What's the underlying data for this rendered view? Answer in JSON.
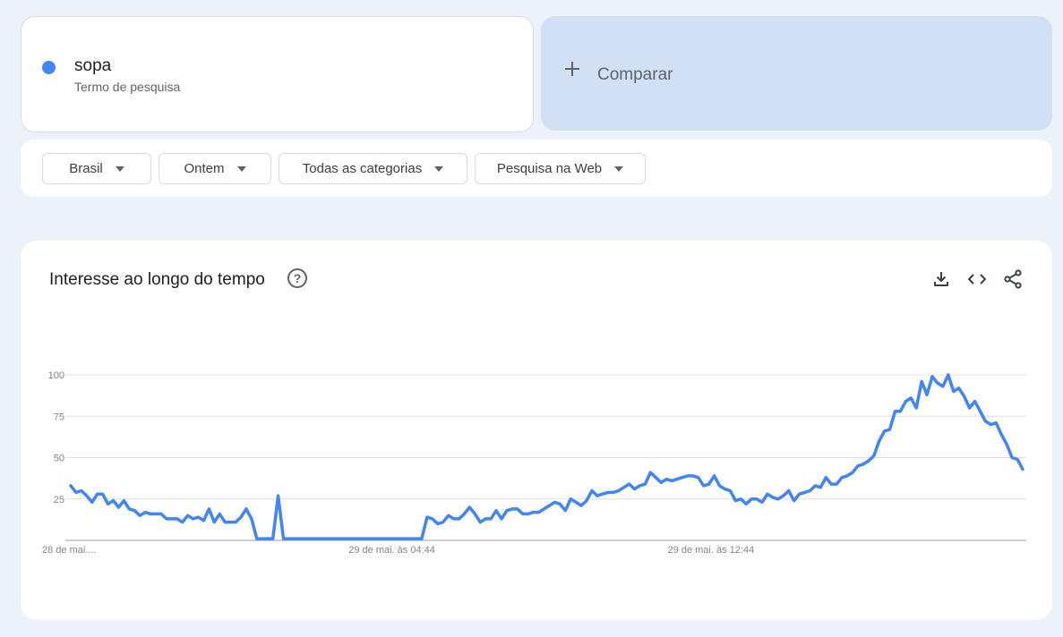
{
  "term": {
    "name": "sopa",
    "subtitle": "Termo de pesquisa",
    "color": "#4285f4"
  },
  "compare": {
    "label": "Comparar",
    "icon": "plus-icon"
  },
  "filters": [
    {
      "label": "Brasil",
      "icon": "caret-down-icon"
    },
    {
      "label": "Ontem",
      "icon": "caret-down-icon"
    },
    {
      "label": "Todas as categorias",
      "icon": "caret-down-icon"
    },
    {
      "label": "Pesquisa na Web",
      "icon": "caret-down-icon"
    }
  ],
  "chart_section": {
    "title": "Interesse ao longo do tempo",
    "icons": [
      "help-icon",
      "download-icon",
      "embed-icon",
      "share-icon"
    ]
  },
  "chart_data": {
    "type": "line",
    "title": "",
    "xlabel": "",
    "ylabel": "",
    "ylim": [
      0,
      100
    ],
    "yticks": [
      100,
      75,
      50,
      25
    ],
    "grid": true,
    "x_tick_labels": [
      {
        "label": "28 de mai....",
        "index": 0
      },
      {
        "label": "29 de mai. às 04:44",
        "index": 61
      },
      {
        "label": "29 de mai. às 12:44",
        "index": 121
      }
    ],
    "series": [
      {
        "color": "#4285f4",
        "values": [
          33,
          29,
          30,
          27,
          23,
          28,
          28,
          22,
          24,
          20,
          24,
          19,
          18,
          15,
          17,
          16,
          16,
          16,
          13,
          13,
          13,
          11,
          15,
          13,
          14,
          12,
          19,
          11,
          16,
          11,
          11,
          11,
          14,
          19,
          13,
          1,
          1,
          1,
          1,
          27,
          1,
          1,
          1,
          1,
          1,
          1,
          1,
          1,
          1,
          1,
          1,
          1,
          1,
          1,
          1,
          1,
          1,
          1,
          1,
          1,
          1,
          1,
          1,
          1,
          1,
          1,
          1,
          14,
          13,
          10,
          11,
          15,
          13,
          13,
          16,
          20,
          16,
          11,
          13,
          13,
          18,
          13,
          18,
          19,
          19,
          16,
          16,
          17,
          17,
          19,
          21,
          23,
          22,
          18,
          25,
          23,
          21,
          24,
          30,
          27,
          28,
          29,
          29,
          30,
          32,
          34,
          31,
          33,
          34,
          41,
          38,
          35,
          37,
          36,
          37,
          38,
          39,
          39,
          38,
          33,
          34,
          39,
          33,
          31,
          30,
          24,
          25,
          22,
          25,
          25,
          23,
          28,
          26,
          25,
          27,
          30,
          24,
          28,
          29,
          30,
          33,
          32,
          38,
          34,
          34,
          38,
          39,
          41,
          45,
          46,
          48,
          51,
          60,
          66,
          67,
          78,
          78,
          84,
          86,
          80,
          96,
          88,
          99,
          95,
          93,
          100,
          90,
          92,
          87,
          80,
          84,
          78,
          72,
          70,
          71,
          64,
          58,
          50,
          49,
          43
        ]
      }
    ]
  }
}
